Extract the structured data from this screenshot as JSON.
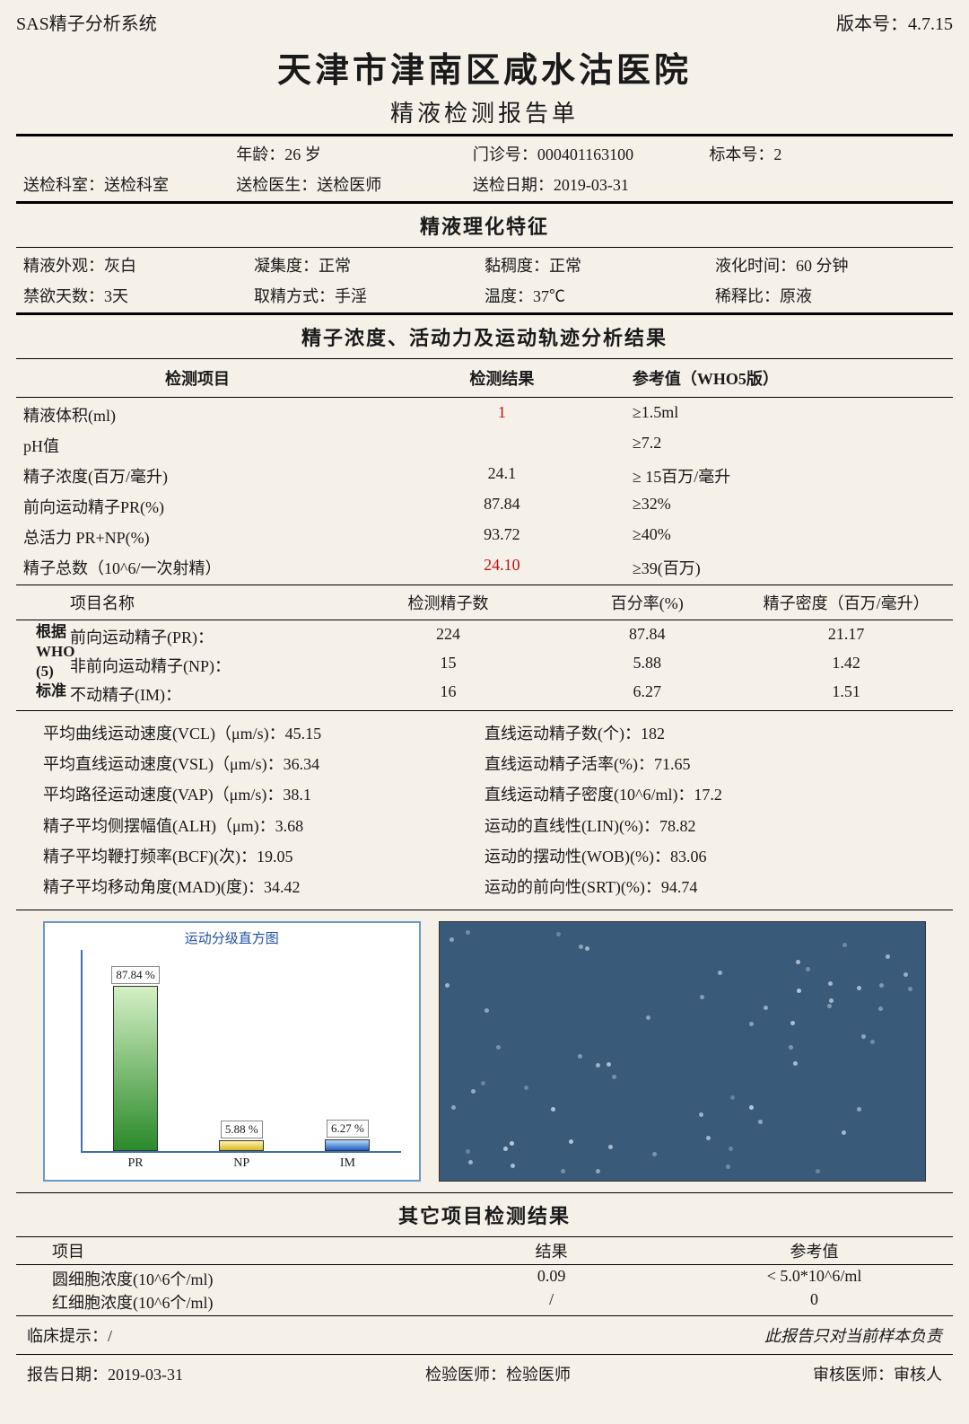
{
  "header": {
    "system": "SAS精子分析系统",
    "version_label": "版本号：",
    "version": "4.7.15",
    "hospital": "天津市津南区咸水沽医院",
    "report_title": "精液检测报告单"
  },
  "patient": {
    "age_label": "年龄：",
    "age": "26 岁",
    "outpatient_label": "门诊号：",
    "outpatient": "000401163100",
    "sample_label": "标本号：",
    "sample": "2",
    "dept_label": "送检科室：",
    "dept": "送检科室",
    "doctor_label": "送检医生：",
    "doctor": "送检医师",
    "date_label": "送检日期：",
    "date": "2019-03-31"
  },
  "physical": {
    "section": "精液理化特征",
    "appearance_label": "精液外观：",
    "appearance": "灰白",
    "agglutination_label": "凝集度：",
    "agglutination": "正常",
    "viscosity_label": "黏稠度：",
    "viscosity": "正常",
    "liquefaction_label": "液化时间：",
    "liquefaction": "60 分钟",
    "abstinence_label": "禁欲天数：",
    "abstinence": "3天",
    "collection_label": "取精方式：",
    "collection": "手淫",
    "temp_label": "温度：",
    "temp": "37℃",
    "dilution_label": "稀释比：",
    "dilution": "原液"
  },
  "analysis": {
    "section": "精子浓度、活动力及运动轨迹分析结果",
    "col_item": "检测项目",
    "col_result": "检测结果",
    "col_ref": "参考值（WHO5版）",
    "rows": [
      {
        "item": "精液体积(ml)",
        "result": "1",
        "ref": "≥1.5ml",
        "red": true
      },
      {
        "item": "pH值",
        "result": "",
        "ref": "≥7.2",
        "red": false
      },
      {
        "item": "精子浓度(百万/毫升)",
        "result": "24.1",
        "ref": "≥ 15百万/毫升",
        "red": false
      },
      {
        "item": "前向运动精子PR(%)",
        "result": "87.84",
        "ref": "≥32%",
        "red": false
      },
      {
        "item": "总活力 PR+NP(%)",
        "result": "93.72",
        "ref": "≥40%",
        "red": false
      },
      {
        "item": "精子总数（10^6/一次射精）",
        "result": "24.10",
        "ref": "≥39(百万)",
        "red": true
      }
    ]
  },
  "motility": {
    "side_label": "根据\nWHO\n(5)\n标准",
    "col_name": "项目名称",
    "col_count": "检测精子数",
    "col_percent": "百分率(%)",
    "col_density": "精子密度（百万/毫升）",
    "rows": [
      {
        "name": "前向运动精子(PR)：",
        "count": "224",
        "percent": "87.84",
        "density": "21.17"
      },
      {
        "name": "非前向运动精子(NP)：",
        "count": "15",
        "percent": "5.88",
        "density": "1.42"
      },
      {
        "name": "不动精子(IM)：",
        "count": "16",
        "percent": "6.27",
        "density": "1.51"
      }
    ]
  },
  "velocity": {
    "left": [
      "平均曲线运动速度(VCL)（μm/s)：45.15",
      "平均直线运动速度(VSL)（μm/s)：36.34",
      "平均路径运动速度(VAP)（μm/s)：38.1",
      "精子平均侧摆幅值(ALH)（μm)：3.68",
      "精子平均鞭打频率(BCF)(次)：19.05",
      "精子平均移动角度(MAD)(度)：34.42"
    ],
    "right": [
      "直线运动精子数(个)：182",
      "直线运动精子活率(%)：71.65",
      "直线运动精子密度(10^6/ml)：17.2",
      "运动的直线性(LIN)(%)：78.82",
      "运动的摆动性(WOB)(%)：83.06",
      "运动的前向性(SRT)(%)：94.74"
    ]
  },
  "chart": {
    "title": "运动分级直方图",
    "bars": [
      {
        "name": "PR",
        "label": "87.84 %",
        "height": 87.84,
        "top_color": "#d4f0c4",
        "bottom_color": "#2a8a2a"
      },
      {
        "name": "NP",
        "label": "5.88 %",
        "height": 5.88,
        "top_color": "#fff4b0",
        "bottom_color": "#d8b820"
      },
      {
        "name": "IM",
        "label": "6.27 %",
        "height": 6.27,
        "top_color": "#b8d8f8",
        "bottom_color": "#2060c0"
      }
    ],
    "micro_bg": "#3a5a7a"
  },
  "other": {
    "section": "其它项目检测结果",
    "col_item": "项目",
    "col_result": "结果",
    "col_ref": "参考值",
    "rows": [
      {
        "item": "圆细胞浓度(10^6个/ml)",
        "result": "0.09",
        "ref": "< 5.0*10^6/ml"
      },
      {
        "item": "红细胞浓度(10^6个/ml)",
        "result": "/",
        "ref": "0"
      }
    ]
  },
  "footer": {
    "clinical_label": "临床提示：",
    "clinical": "/",
    "disclaimer": "此报告只对当前样本负责",
    "report_date_label": "报告日期：",
    "report_date": "2019-03-31",
    "test_doctor_label": "检验医师：",
    "test_doctor": "检验医师",
    "review_doctor_label": "审核医师：",
    "review_doctor": "审核人"
  }
}
